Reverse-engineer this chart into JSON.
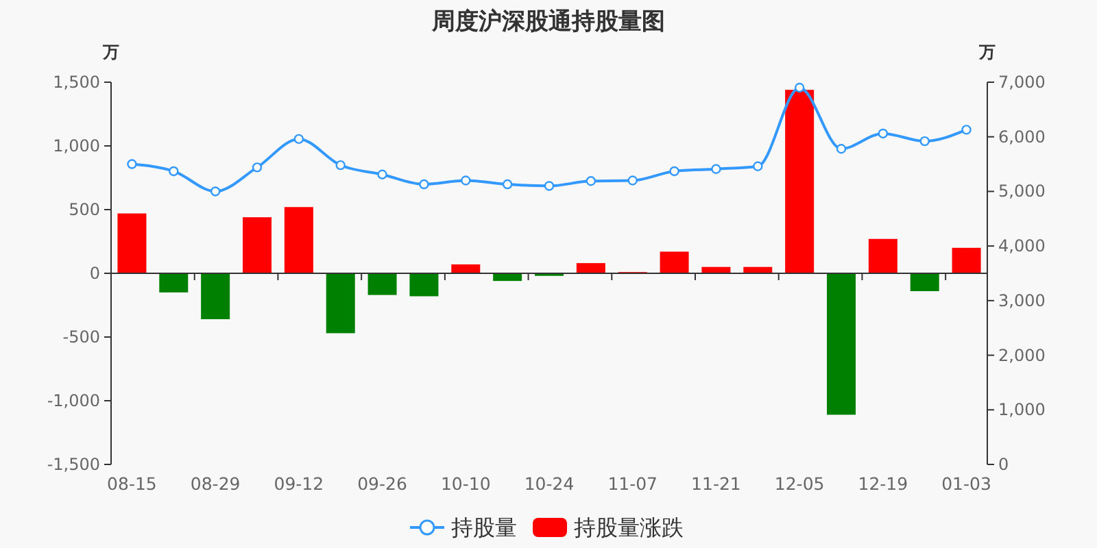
{
  "chart_data": {
    "type": "bar",
    "title": "周度沪深股通持股量图",
    "ylabel": "万",
    "y2label": "万",
    "categories": [
      "08-15",
      null,
      "08-29",
      null,
      "09-12",
      null,
      "09-26",
      null,
      "10-10",
      null,
      "10-24",
      null,
      "11-07",
      null,
      "11-21",
      null,
      "12-05",
      null,
      "12-19",
      null,
      "01-03"
    ],
    "series": [
      {
        "name": "持股量",
        "type": "line",
        "axis": "y2",
        "color": "#3399ff",
        "values": [
          5500,
          5370,
          5000,
          5440,
          5960,
          5480,
          5310,
          5130,
          5200,
          5130,
          5100,
          5190,
          5200,
          5370,
          5410,
          5460,
          6900,
          5780,
          6060,
          5920,
          6130
        ]
      },
      {
        "name": "持股量涨跌",
        "color": "#ff0000",
        "colors": [
          "#ff0000",
          "#008000",
          "#008000",
          "#ff0000",
          "#ff0000",
          "#008000",
          "#008000",
          "#008000",
          "#ff0000",
          "#008000",
          "#008000",
          "#ff0000",
          "#ff0000",
          "#ff0000",
          "#ff0000",
          "#ff0000",
          "#ff0000",
          "#008000",
          "#ff0000",
          "#008000",
          "#ff0000"
        ],
        "values": [
          470,
          -150,
          -360,
          440,
          520,
          -470,
          -170,
          -180,
          70,
          -60,
          -20,
          80,
          10,
          170,
          50,
          50,
          1440,
          -1110,
          270,
          -140,
          200
        ]
      }
    ],
    "ylim": [
      -1500,
      1500
    ],
    "yticks": [
      {
        "value": -1500,
        "label": "-1,500"
      },
      {
        "value": -1000,
        "label": "-1,000"
      },
      -500,
      0,
      500,
      {
        "value": 1000,
        "label": "1,000"
      },
      {
        "value": 1500,
        "label": "1,500"
      }
    ],
    "y2lim": [
      0,
      7000
    ],
    "y2ticks": [
      0,
      {
        "value": 1000,
        "label": "1,000"
      },
      {
        "value": 2000,
        "label": "2,000"
      },
      {
        "value": 3000,
        "label": "3,000"
      },
      {
        "value": 4000,
        "label": "4,000"
      },
      {
        "value": 5000,
        "label": "5,000"
      },
      {
        "value": 6000,
        "label": "6,000"
      },
      {
        "value": 7000,
        "label": "7,000"
      }
    ],
    "legend": "bottom",
    "marker": "circle"
  }
}
